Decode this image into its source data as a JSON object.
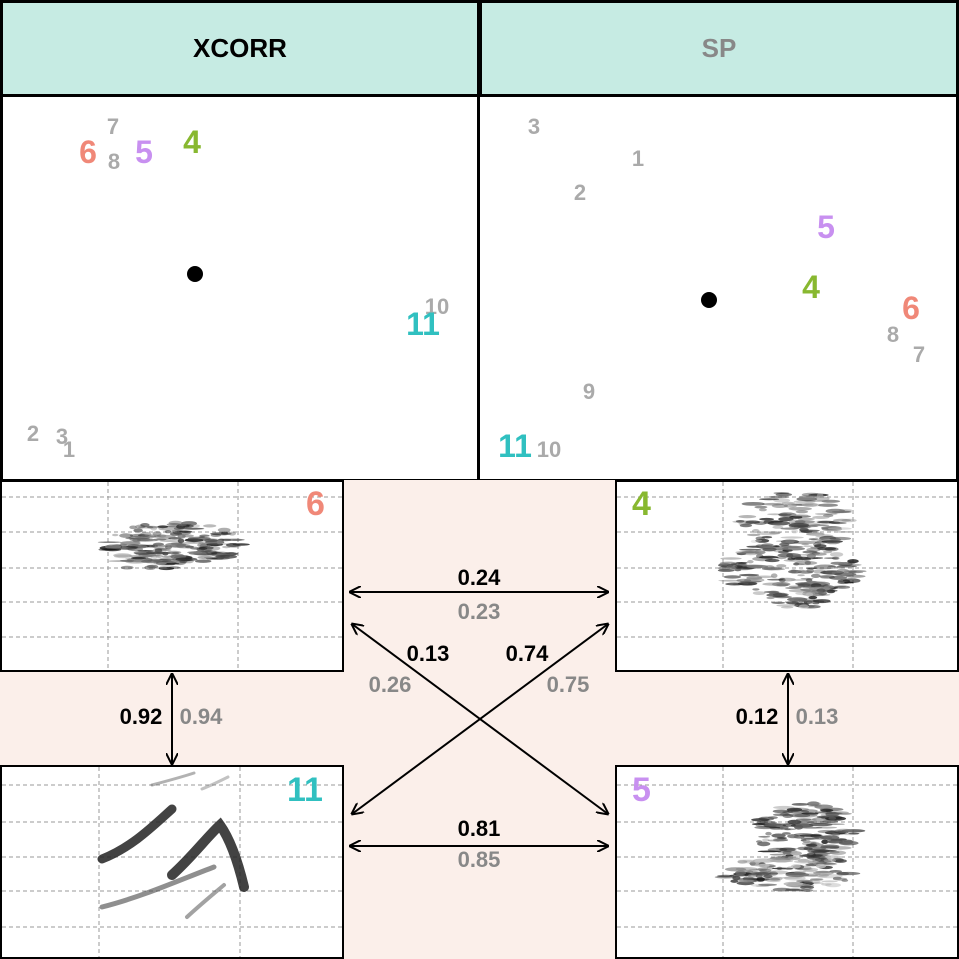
{
  "colors": {
    "header_bg": "#c6ebe3",
    "link_bg": "#fbefea",
    "black": "#000000",
    "gray": "#888888",
    "light_gray": "#aaaaaa",
    "salmon": "#f08878",
    "lavender": "#c890f0",
    "green": "#88b830",
    "teal": "#30c0c0"
  },
  "headers": {
    "left": "XCORR",
    "right": "SP"
  },
  "xcorr_points": [
    {
      "label": "7",
      "color": "light_gray"
    },
    {
      "label": "6",
      "color": "salmon"
    },
    {
      "label": "8",
      "color": "light_gray"
    },
    {
      "label": "5",
      "color": "lavender"
    },
    {
      "label": "4",
      "color": "green"
    },
    {
      "label": "10",
      "color": "light_gray"
    },
    {
      "label": "11",
      "color": "teal"
    },
    {
      "label": "2",
      "color": "light_gray"
    },
    {
      "label": "3",
      "color": "light_gray"
    },
    {
      "label": "1",
      "color": "light_gray"
    }
  ],
  "sp_points": [
    {
      "label": "3",
      "color": "light_gray"
    },
    {
      "label": "1",
      "color": "light_gray"
    },
    {
      "label": "2",
      "color": "light_gray"
    },
    {
      "label": "5",
      "color": "lavender"
    },
    {
      "label": "4",
      "color": "green"
    },
    {
      "label": "6",
      "color": "salmon"
    },
    {
      "label": "8",
      "color": "light_gray"
    },
    {
      "label": "7",
      "color": "light_gray"
    },
    {
      "label": "9",
      "color": "light_gray"
    },
    {
      "label": "11",
      "color": "teal"
    },
    {
      "label": "10",
      "color": "light_gray"
    }
  ],
  "spectrograms": {
    "top_left": {
      "label": "6",
      "color": "salmon"
    },
    "top_right": {
      "label": "4",
      "color": "green"
    },
    "bottom_left": {
      "label": "11",
      "color": "teal"
    },
    "bottom_right": {
      "label": "5",
      "color": "lavender"
    }
  },
  "similarities": {
    "top": {
      "xcorr": "0.24",
      "sp": "0.23"
    },
    "bottom": {
      "xcorr": "0.81",
      "sp": "0.85"
    },
    "diag_down": {
      "xcorr": "0.13",
      "sp": "0.26"
    },
    "diag_up": {
      "xcorr": "0.74",
      "sp": "0.75"
    },
    "left": {
      "xcorr": "0.92",
      "sp": "0.94"
    },
    "right": {
      "xcorr": "0.12",
      "sp": "0.13"
    }
  }
}
